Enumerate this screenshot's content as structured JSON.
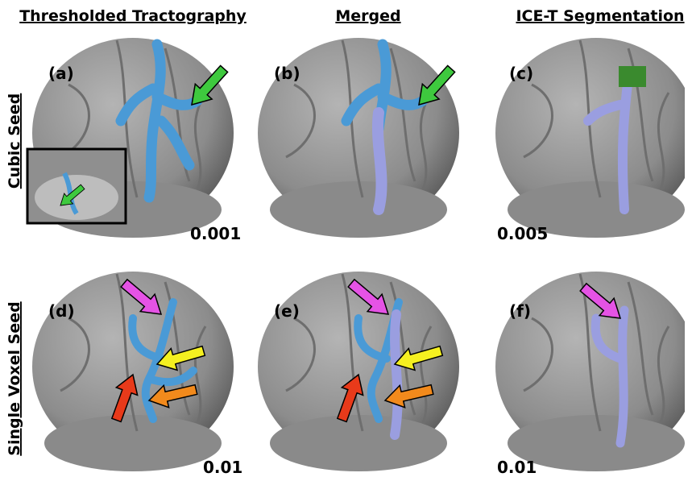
{
  "header": {
    "columns": [
      "Thresholded Tractography",
      "Merged",
      "ICE-T Segmentation"
    ]
  },
  "rows": [
    "Cubic Seed",
    "Single Voxel Seed"
  ],
  "panels": [
    {
      "label": "(a)",
      "threshold": "0.001"
    },
    {
      "label": "(b)"
    },
    {
      "label": "(c)",
      "threshold": "0.005"
    },
    {
      "label": "(d)",
      "threshold": "0.01"
    },
    {
      "label": "(e)"
    },
    {
      "label": "(f)",
      "threshold": "0.01"
    }
  ]
}
